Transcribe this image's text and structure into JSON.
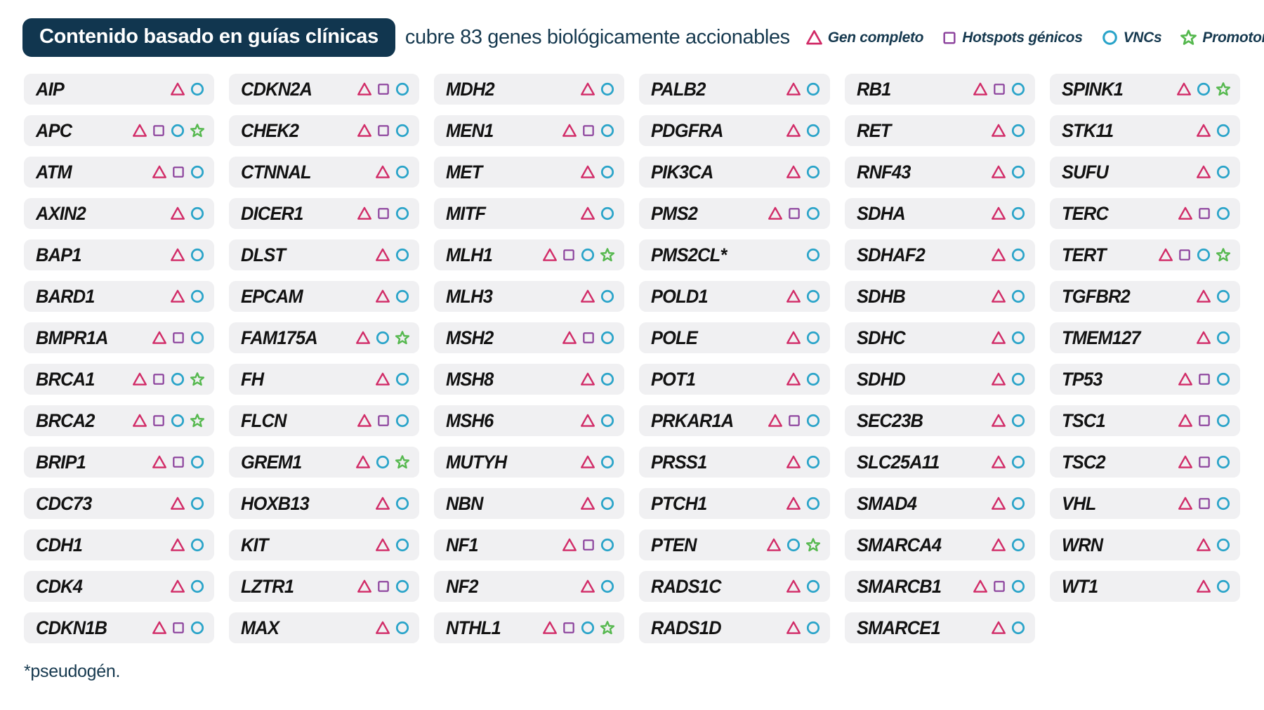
{
  "header": {
    "badge": "Contenido basado en guías clínicas",
    "subtitle": "cubre 83 genes biológicamente accionables"
  },
  "legend": {
    "items": [
      {
        "icon": "triangle-icon",
        "shape": "triangle",
        "label": "Gen completo"
      },
      {
        "icon": "square-icon",
        "shape": "square",
        "label": "Hotspots génicos"
      },
      {
        "icon": "circle-icon",
        "shape": "circle",
        "label": "VNCs"
      },
      {
        "icon": "star-icon",
        "shape": "star",
        "label": "Promotores/UTRs"
      }
    ]
  },
  "colors": {
    "badge_bg": "#11364f",
    "text": "#16394f",
    "chip_bg": "#f0f0f2",
    "triangle": "#d12b67",
    "square": "#8a3f9b",
    "circle": "#2aa4c9",
    "star": "#55b84e"
  },
  "footer": {
    "note": "*pseudogén."
  },
  "genes": {
    "columns": [
      [
        {
          "name": "AIP",
          "icons": [
            "triangle",
            "circle"
          ]
        },
        {
          "name": "APC",
          "icons": [
            "triangle",
            "square",
            "circle",
            "star"
          ]
        },
        {
          "name": "ATM",
          "icons": [
            "triangle",
            "square",
            "circle"
          ]
        },
        {
          "name": "AXIN2",
          "icons": [
            "triangle",
            "circle"
          ]
        },
        {
          "name": "BAP1",
          "icons": [
            "triangle",
            "circle"
          ]
        },
        {
          "name": "BARD1",
          "icons": [
            "triangle",
            "circle"
          ]
        },
        {
          "name": "BMPR1A",
          "icons": [
            "triangle",
            "square",
            "circle"
          ]
        },
        {
          "name": "BRCA1",
          "icons": [
            "triangle",
            "square",
            "circle",
            "star"
          ]
        },
        {
          "name": "BRCA2",
          "icons": [
            "triangle",
            "square",
            "circle",
            "star"
          ]
        },
        {
          "name": "BRIP1",
          "icons": [
            "triangle",
            "square",
            "circle"
          ]
        },
        {
          "name": "CDC73",
          "icons": [
            "triangle",
            "circle"
          ]
        },
        {
          "name": "CDH1",
          "icons": [
            "triangle",
            "circle"
          ]
        },
        {
          "name": "CDK4",
          "icons": [
            "triangle",
            "circle"
          ]
        },
        {
          "name": "CDKN1B",
          "icons": [
            "triangle",
            "square",
            "circle"
          ]
        }
      ],
      [
        {
          "name": "CDKN2A",
          "icons": [
            "triangle",
            "square",
            "circle"
          ]
        },
        {
          "name": "CHEK2",
          "icons": [
            "triangle",
            "square",
            "circle"
          ]
        },
        {
          "name": "CTNNAL",
          "icons": [
            "triangle",
            "circle"
          ]
        },
        {
          "name": "DICER1",
          "icons": [
            "triangle",
            "square",
            "circle"
          ]
        },
        {
          "name": "DLST",
          "icons": [
            "triangle",
            "circle"
          ]
        },
        {
          "name": "EPCAM",
          "icons": [
            "triangle",
            "circle"
          ]
        },
        {
          "name": "FAM175A",
          "icons": [
            "triangle",
            "circle",
            "star"
          ]
        },
        {
          "name": "FH",
          "icons": [
            "triangle",
            "circle"
          ]
        },
        {
          "name": "FLCN",
          "icons": [
            "triangle",
            "square",
            "circle"
          ]
        },
        {
          "name": "GREM1",
          "icons": [
            "triangle",
            "circle",
            "star"
          ]
        },
        {
          "name": "HOXB13",
          "icons": [
            "triangle",
            "circle"
          ]
        },
        {
          "name": "KIT",
          "icons": [
            "triangle",
            "circle"
          ]
        },
        {
          "name": "LZTR1",
          "icons": [
            "triangle",
            "square",
            "circle"
          ]
        },
        {
          "name": "MAX",
          "icons": [
            "triangle",
            "circle"
          ]
        }
      ],
      [
        {
          "name": "MDH2",
          "icons": [
            "triangle",
            "circle"
          ]
        },
        {
          "name": "MEN1",
          "icons": [
            "triangle",
            "square",
            "circle"
          ]
        },
        {
          "name": "MET",
          "icons": [
            "triangle",
            "circle"
          ]
        },
        {
          "name": "MITF",
          "icons": [
            "triangle",
            "circle"
          ]
        },
        {
          "name": "MLH1",
          "icons": [
            "triangle",
            "square",
            "circle",
            "star"
          ]
        },
        {
          "name": "MLH3",
          "icons": [
            "triangle",
            "circle"
          ]
        },
        {
          "name": "MSH2",
          "icons": [
            "triangle",
            "square",
            "circle"
          ]
        },
        {
          "name": "MSH8",
          "icons": [
            "triangle",
            "circle"
          ]
        },
        {
          "name": "MSH6",
          "icons": [
            "triangle",
            "circle"
          ]
        },
        {
          "name": "MUTYH",
          "icons": [
            "triangle",
            "circle"
          ]
        },
        {
          "name": "NBN",
          "icons": [
            "triangle",
            "circle"
          ]
        },
        {
          "name": "NF1",
          "icons": [
            "triangle",
            "square",
            "circle"
          ]
        },
        {
          "name": "NF2",
          "icons": [
            "triangle",
            "circle"
          ]
        },
        {
          "name": "NTHL1",
          "icons": [
            "triangle",
            "square",
            "circle",
            "star"
          ]
        }
      ],
      [
        {
          "name": "PALB2",
          "icons": [
            "triangle",
            "circle"
          ]
        },
        {
          "name": "PDGFRA",
          "icons": [
            "triangle",
            "circle"
          ]
        },
        {
          "name": "PIK3CA",
          "icons": [
            "triangle",
            "circle"
          ]
        },
        {
          "name": "PMS2",
          "icons": [
            "triangle",
            "square",
            "circle"
          ]
        },
        {
          "name": "PMS2CL*",
          "icons": [
            "circle"
          ]
        },
        {
          "name": "POLD1",
          "icons": [
            "triangle",
            "circle"
          ]
        },
        {
          "name": "POLE",
          "icons": [
            "triangle",
            "circle"
          ]
        },
        {
          "name": "POT1",
          "icons": [
            "triangle",
            "circle"
          ]
        },
        {
          "name": "PRKAR1A",
          "icons": [
            "triangle",
            "square",
            "circle"
          ]
        },
        {
          "name": "PRSS1",
          "icons": [
            "triangle",
            "circle"
          ]
        },
        {
          "name": "PTCH1",
          "icons": [
            "triangle",
            "circle"
          ]
        },
        {
          "name": "PTEN",
          "icons": [
            "triangle",
            "circle",
            "star"
          ]
        },
        {
          "name": "RADS1C",
          "icons": [
            "triangle",
            "circle"
          ]
        },
        {
          "name": "RADS1D",
          "icons": [
            "triangle",
            "circle"
          ]
        }
      ],
      [
        {
          "name": "RB1",
          "icons": [
            "triangle",
            "square",
            "circle"
          ]
        },
        {
          "name": "RET",
          "icons": [
            "triangle",
            "circle"
          ]
        },
        {
          "name": "RNF43",
          "icons": [
            "triangle",
            "circle"
          ]
        },
        {
          "name": "SDHA",
          "icons": [
            "triangle",
            "circle"
          ]
        },
        {
          "name": "SDHAF2",
          "icons": [
            "triangle",
            "circle"
          ]
        },
        {
          "name": "SDHB",
          "icons": [
            "triangle",
            "circle"
          ]
        },
        {
          "name": "SDHC",
          "icons": [
            "triangle",
            "circle"
          ]
        },
        {
          "name": "SDHD",
          "icons": [
            "triangle",
            "circle"
          ]
        },
        {
          "name": "SEC23B",
          "icons": [
            "triangle",
            "circle"
          ]
        },
        {
          "name": "SLC25A11",
          "icons": [
            "triangle",
            "circle"
          ]
        },
        {
          "name": "SMAD4",
          "icons": [
            "triangle",
            "circle"
          ]
        },
        {
          "name": "SMARCA4",
          "icons": [
            "triangle",
            "circle"
          ]
        },
        {
          "name": "SMARCB1",
          "icons": [
            "triangle",
            "square",
            "circle"
          ]
        },
        {
          "name": "SMARCE1",
          "icons": [
            "triangle",
            "circle"
          ]
        }
      ],
      [
        {
          "name": "SPINK1",
          "icons": [
            "triangle",
            "circle",
            "star"
          ]
        },
        {
          "name": "STK11",
          "icons": [
            "triangle",
            "circle"
          ]
        },
        {
          "name": "SUFU",
          "icons": [
            "triangle",
            "circle"
          ]
        },
        {
          "name": "TERC",
          "icons": [
            "triangle",
            "square",
            "circle"
          ]
        },
        {
          "name": "TERT",
          "icons": [
            "triangle",
            "square",
            "circle",
            "star"
          ]
        },
        {
          "name": "TGFBR2",
          "icons": [
            "triangle",
            "circle"
          ]
        },
        {
          "name": "TMEM127",
          "icons": [
            "triangle",
            "circle"
          ]
        },
        {
          "name": "TP53",
          "icons": [
            "triangle",
            "square",
            "circle"
          ]
        },
        {
          "name": "TSC1",
          "icons": [
            "triangle",
            "square",
            "circle"
          ]
        },
        {
          "name": "TSC2",
          "icons": [
            "triangle",
            "square",
            "circle"
          ]
        },
        {
          "name": "VHL",
          "icons": [
            "triangle",
            "square",
            "circle"
          ]
        },
        {
          "name": "WRN",
          "icons": [
            "triangle",
            "circle"
          ]
        },
        {
          "name": "WT1",
          "icons": [
            "triangle",
            "circle"
          ]
        }
      ]
    ]
  }
}
